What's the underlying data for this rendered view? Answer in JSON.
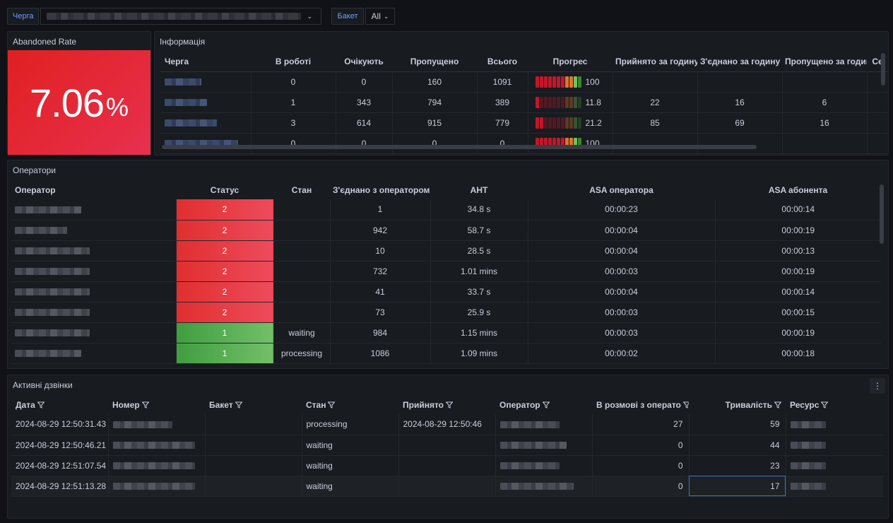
{
  "top": {
    "queue_label": "Черга",
    "bucket_label": "Бакет",
    "bucket_value": "All"
  },
  "stat": {
    "title": "Abandoned Rate",
    "value": "7.06",
    "unit": "%",
    "color": "#e02f2f"
  },
  "info": {
    "title": "Інформація",
    "columns": [
      "Черга",
      "В роботі",
      "Очікують",
      "Пропущено",
      "Всього",
      "Прогрес",
      "Прийнято за годину",
      "З'єднано за годину",
      "Пропущено за годину",
      "Се"
    ],
    "rows": [
      {
        "in_work": "0",
        "waiting": "0",
        "missed": "160",
        "total": "1091",
        "progress": "100",
        "accepted_hour": "",
        "connected_hour": "",
        "missed_hour": ""
      },
      {
        "in_work": "1",
        "waiting": "343",
        "missed": "794",
        "total": "389",
        "progress": "11.8",
        "accepted_hour": "22",
        "connected_hour": "16",
        "missed_hour": "6"
      },
      {
        "in_work": "3",
        "waiting": "614",
        "missed": "915",
        "total": "779",
        "progress": "21.2",
        "accepted_hour": "85",
        "connected_hour": "69",
        "missed_hour": "16"
      },
      {
        "in_work": "0",
        "waiting": "0",
        "missed": "0",
        "total": "0",
        "progress": "100",
        "accepted_hour": "",
        "connected_hour": "",
        "missed_hour": ""
      }
    ]
  },
  "operators": {
    "title": "Оператори",
    "columns": [
      "Оператор",
      "Статус",
      "Стан",
      "З'єднано з оператором",
      "AHT",
      "ASA оператора",
      "ASA абонента"
    ],
    "rows": [
      {
        "status": "2",
        "state": "",
        "connected": "1",
        "aht": "34.8 s",
        "asa_op": "00:00:23",
        "asa_sub": "00:00:14",
        "color": "red"
      },
      {
        "status": "2",
        "state": "",
        "connected": "942",
        "aht": "58.7 s",
        "asa_op": "00:00:04",
        "asa_sub": "00:00:19",
        "color": "red"
      },
      {
        "status": "2",
        "state": "",
        "connected": "10",
        "aht": "28.5 s",
        "asa_op": "00:00:04",
        "asa_sub": "00:00:13",
        "color": "red"
      },
      {
        "status": "2",
        "state": "",
        "connected": "732",
        "aht": "1.01 mins",
        "asa_op": "00:00:03",
        "asa_sub": "00:00:19",
        "color": "red"
      },
      {
        "status": "2",
        "state": "",
        "connected": "41",
        "aht": "33.7 s",
        "asa_op": "00:00:04",
        "asa_sub": "00:00:14",
        "color": "red"
      },
      {
        "status": "2",
        "state": "",
        "connected": "73",
        "aht": "25.9 s",
        "asa_op": "00:00:03",
        "asa_sub": "00:00:15",
        "color": "red"
      },
      {
        "status": "1",
        "state": "waiting",
        "connected": "984",
        "aht": "1.15 mins",
        "asa_op": "00:00:03",
        "asa_sub": "00:00:19",
        "color": "green"
      },
      {
        "status": "1",
        "state": "processing",
        "connected": "1086",
        "aht": "1.09 mins",
        "asa_op": "00:00:02",
        "asa_sub": "00:00:18",
        "color": "green"
      }
    ]
  },
  "calls": {
    "title": "Активні дзвінки",
    "columns": [
      "Дата",
      "Номер",
      "Бакет",
      "Стан",
      "Прийнято",
      "Оператор",
      "В розмові з операто",
      "Тривалість",
      "Ресурс"
    ],
    "rows": [
      {
        "date": "2024-08-29 12:50:31.43",
        "state": "processing",
        "accepted": "2024-08-29 12:50:46",
        "talking": "27",
        "duration": "59"
      },
      {
        "date": "2024-08-29 12:50:46.21",
        "state": "waiting",
        "accepted": "",
        "talking": "0",
        "duration": "44"
      },
      {
        "date": "2024-08-29 12:51:07.54",
        "state": "waiting",
        "accepted": "",
        "talking": "0",
        "duration": "23"
      },
      {
        "date": "2024-08-29 12:51:13.28",
        "state": "waiting",
        "accepted": "",
        "talking": "0",
        "duration": "17"
      }
    ]
  },
  "icons": {
    "filter": "filter-icon",
    "chevron": "chevron-down-icon",
    "menu": "kebab-menu-icon"
  }
}
